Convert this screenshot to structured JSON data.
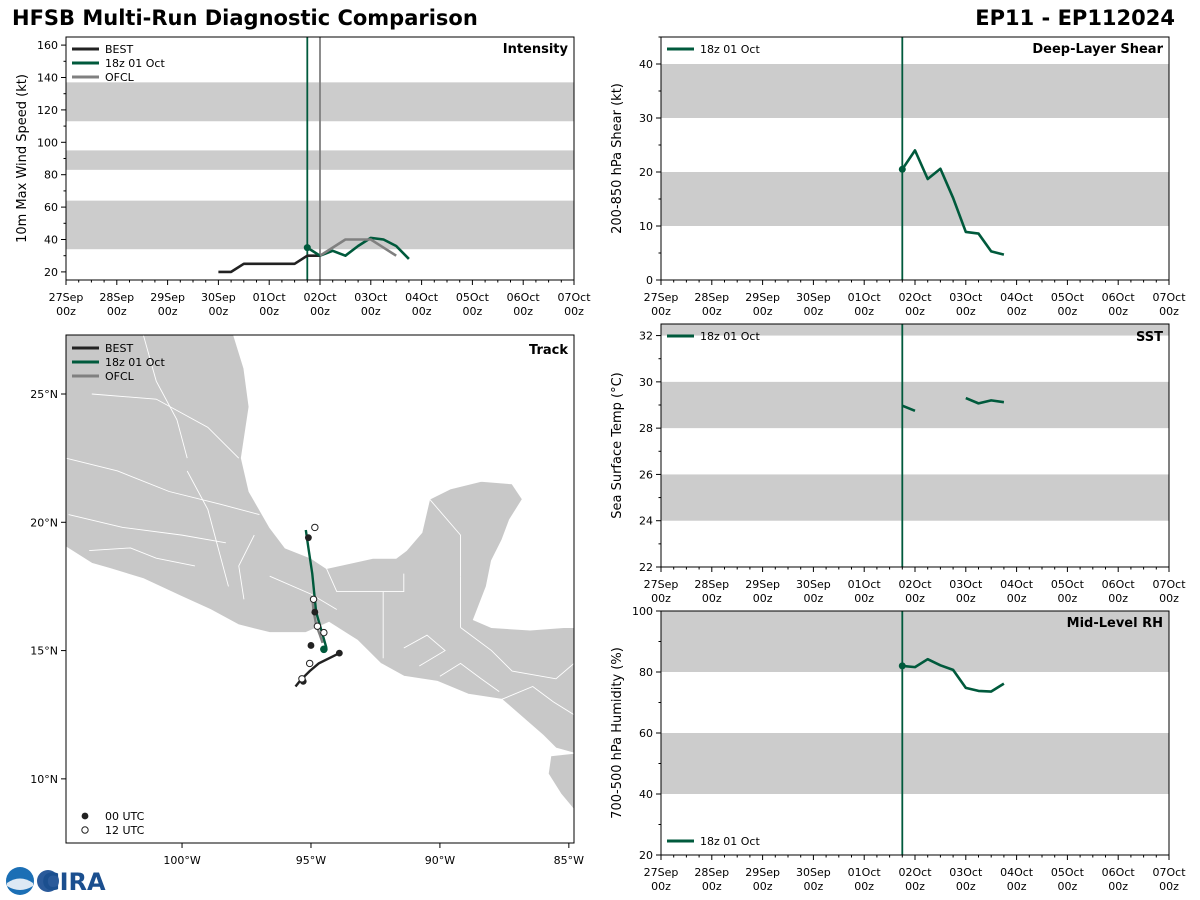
{
  "header": {
    "title_left": "HFSB Multi-Run Diagnostic Comparison",
    "title_right": "EP11 - EP112024"
  },
  "logo": {
    "text": "CIRA",
    "seal": "NOAA"
  },
  "colors": {
    "best": "#222222",
    "run": "#005a3c",
    "ofcl": "#808080",
    "band": "#cccccc",
    "land": "#c8c8c8"
  },
  "time_axis": {
    "ticks": [
      [
        "27Sep",
        "00z"
      ],
      [
        "28Sep",
        "00z"
      ],
      [
        "29Sep",
        "00z"
      ],
      [
        "30Sep",
        "00z"
      ],
      [
        "01Oct",
        "00z"
      ],
      [
        "02Oct",
        "00z"
      ],
      [
        "03Oct",
        "00z"
      ],
      [
        "04Oct",
        "00z"
      ],
      [
        "05Oct",
        "00z"
      ],
      [
        "06Oct",
        "00z"
      ],
      [
        "07Oct",
        "00z"
      ]
    ],
    "range_days": [
      0,
      10
    ]
  },
  "chart_data": [
    {
      "id": "intensity",
      "type": "line",
      "title": "Intensity",
      "ylabel": "10m Max Wind Speed (kt)",
      "ylim": [
        15,
        165
      ],
      "yticks": [
        20,
        40,
        60,
        80,
        100,
        120,
        140,
        160
      ],
      "bands": [
        [
          34,
          64
        ],
        [
          83,
          95
        ],
        [
          113,
          137
        ]
      ],
      "vlines": [
        {
          "x": 4.75,
          "color": "run"
        },
        {
          "x": 5.0,
          "color": "ofcl"
        }
      ],
      "legend": [
        "BEST",
        "18z 01 Oct",
        "OFCL"
      ],
      "series": [
        {
          "name": "BEST",
          "color": "best",
          "x": [
            3.0,
            3.25,
            3.5,
            3.75,
            4.0,
            4.25,
            4.5,
            4.75,
            5.0
          ],
          "y": [
            20,
            20,
            25,
            25,
            25,
            25,
            25,
            30,
            30
          ]
        },
        {
          "name": "18z 01 Oct",
          "color": "run",
          "marker": true,
          "x": [
            4.75,
            5.0,
            5.25,
            5.5,
            5.75,
            6.0,
            6.25,
            6.5,
            6.75
          ],
          "y": [
            35,
            30,
            33,
            30,
            36,
            41,
            40,
            36,
            28
          ]
        },
        {
          "name": "OFCL",
          "color": "ofcl",
          "x": [
            5.0,
            5.25,
            5.5,
            5.75,
            6.0,
            6.5
          ],
          "y": [
            30,
            35,
            40,
            40,
            40,
            30
          ]
        }
      ]
    },
    {
      "id": "shear",
      "type": "line",
      "title": "Deep-Layer Shear",
      "ylabel": "200-850 hPa Shear (kt)",
      "ylim": [
        0,
        45
      ],
      "yticks": [
        0,
        10,
        20,
        30,
        40
      ],
      "bands": [
        [
          10,
          20
        ],
        [
          30,
          40
        ]
      ],
      "vlines": [
        {
          "x": 4.75,
          "color": "run"
        }
      ],
      "legend": [
        "18z 01 Oct"
      ],
      "series": [
        {
          "name": "18z 01 Oct",
          "color": "run",
          "marker": true,
          "x": [
            4.75,
            5.0,
            5.25,
            5.5,
            5.75,
            6.0,
            6.25,
            6.5,
            6.75
          ],
          "y": [
            20.5,
            24,
            18.7,
            20.6,
            15.2,
            8.9,
            8.6,
            5.3,
            4.7
          ]
        }
      ]
    },
    {
      "id": "sst",
      "type": "line",
      "title": "SST",
      "ylabel": "Sea Surface Temp (°C)",
      "ylim": [
        22,
        32.5
      ],
      "yticks": [
        22,
        24,
        26,
        28,
        30,
        32
      ],
      "bands": [
        [
          24,
          26
        ],
        [
          28,
          30
        ],
        [
          32,
          32.5
        ]
      ],
      "vlines": [
        {
          "x": 4.75,
          "color": "run"
        }
      ],
      "legend": [
        "18z 01 Oct"
      ],
      "series": [
        {
          "name": "18z 01 Oct",
          "color": "run",
          "x": [
            4.75,
            5.0
          ],
          "y": [
            28.97,
            28.75
          ]
        },
        {
          "name": "18z 01 Oct",
          "color": "run",
          "x": [
            6.0,
            6.25,
            6.5,
            6.75
          ],
          "y": [
            29.3,
            29.07,
            29.2,
            29.12
          ]
        }
      ]
    },
    {
      "id": "rh",
      "type": "line",
      "title": "Mid-Level RH",
      "ylabel": "700-500 hPa Humidity (%)",
      "ylim": [
        20,
        100
      ],
      "yticks": [
        20,
        40,
        60,
        80,
        100
      ],
      "bands": [
        [
          40,
          60
        ],
        [
          80,
          100
        ]
      ],
      "vlines": [
        {
          "x": 4.75,
          "color": "run"
        }
      ],
      "legend": [
        "18z 01 Oct"
      ],
      "series": [
        {
          "name": "18z 01 Oct",
          "color": "run",
          "marker": true,
          "x": [
            4.75,
            5.0,
            5.25,
            5.5,
            5.75,
            6.0,
            6.25,
            6.5,
            6.75
          ],
          "y": [
            82,
            81.6,
            84.2,
            82.2,
            80.7,
            74.8,
            73.8,
            73.6,
            76.2
          ]
        }
      ]
    },
    {
      "id": "track",
      "type": "scatter",
      "title": "Track",
      "lon_range": [
        -104.5,
        -84.8
      ],
      "lat_range": [
        7.5,
        27.3
      ],
      "lon_ticks": [
        [
          -100,
          "100°W"
        ],
        [
          -95,
          "95°W"
        ],
        [
          -90,
          "90°W"
        ],
        [
          -85,
          "85°W"
        ]
      ],
      "lat_ticks": [
        [
          10,
          "10°N"
        ],
        [
          15,
          "15°N"
        ],
        [
          20,
          "20°N"
        ],
        [
          25,
          "25°N"
        ]
      ],
      "legend": [
        "BEST",
        "18z 01 Oct",
        "OFCL"
      ],
      "marker_legend": [
        "00 UTC",
        "12 UTC"
      ],
      "best_track": [
        [
          -93.9,
          14.9
        ],
        [
          -94.7,
          14.5
        ],
        [
          -95.05,
          14.2
        ],
        [
          -95.4,
          13.85
        ],
        [
          -95.6,
          13.6
        ]
      ],
      "best_points_00": [
        [
          -93.9,
          14.9
        ],
        [
          -95.3,
          13.8
        ]
      ],
      "best_points_12": [
        [
          -95.05,
          14.5
        ],
        [
          -95.35,
          13.9
        ]
      ],
      "run_track": [
        [
          -94.4,
          15.1
        ],
        [
          -94.8,
          16.5
        ],
        [
          -94.95,
          18.0
        ],
        [
          -95.1,
          19.0
        ],
        [
          -95.2,
          19.7
        ]
      ],
      "run_start": [
        -94.5,
        15.05
      ],
      "ofcl_track": [
        [
          -94.55,
          15.3
        ],
        [
          -94.65,
          15.6
        ],
        [
          -94.8,
          16.0
        ],
        [
          -94.9,
          16.55
        ],
        [
          -94.95,
          17.05
        ]
      ],
      "ofcl_points_00": [
        [
          -94.85,
          16.5
        ],
        [
          -95.0,
          15.2
        ]
      ],
      "ofcl_points_12": [
        [
          -94.9,
          17.0
        ],
        [
          -94.75,
          15.95
        ],
        [
          -94.5,
          15.7
        ],
        [
          -94.85,
          19.8
        ]
      ],
      "ofcl_extra_00": [
        [
          -95.1,
          19.4
        ]
      ]
    }
  ]
}
